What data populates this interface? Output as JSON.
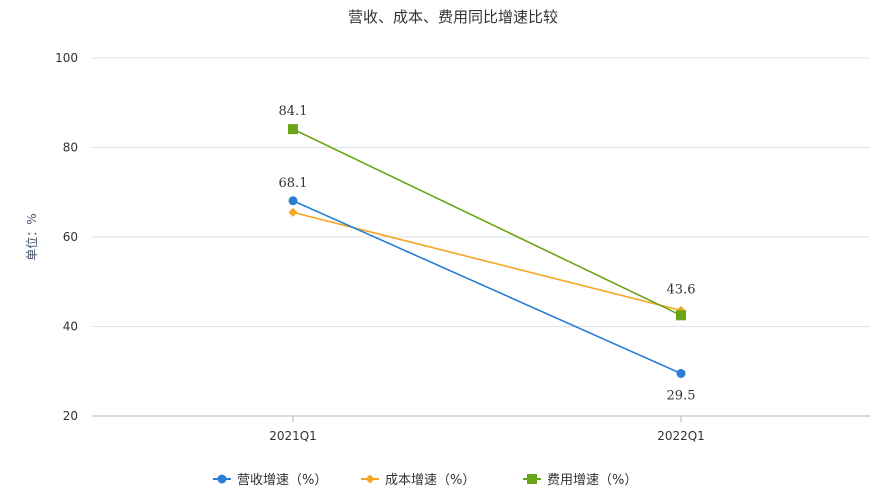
{
  "chart_data": {
    "type": "line",
    "title": "营收、成本、费用同比增速比较",
    "xlabel": "",
    "ylabel": "单位：%",
    "categories": [
      "2021Q1",
      "2022Q1"
    ],
    "ylim": [
      20,
      100
    ],
    "yticks": [
      20,
      40,
      60,
      80,
      100
    ],
    "grid": true,
    "legend_position": "bottom",
    "series": [
      {
        "name": "营收增速（%）",
        "values": [
          68.1,
          29.5
        ],
        "color": "#2a7fd4",
        "marker": "circle",
        "labels": [
          "68.1",
          "29.5"
        ]
      },
      {
        "name": "成本增速（%）",
        "values": [
          65.5,
          43.6
        ],
        "color": "#f5a623",
        "marker": "diamond",
        "labels": [
          "",
          "43.6"
        ]
      },
      {
        "name": "费用增速（%）",
        "values": [
          84.1,
          42.5
        ],
        "color": "#6aa517",
        "marker": "square",
        "labels": [
          "84.1",
          ""
        ]
      }
    ]
  }
}
